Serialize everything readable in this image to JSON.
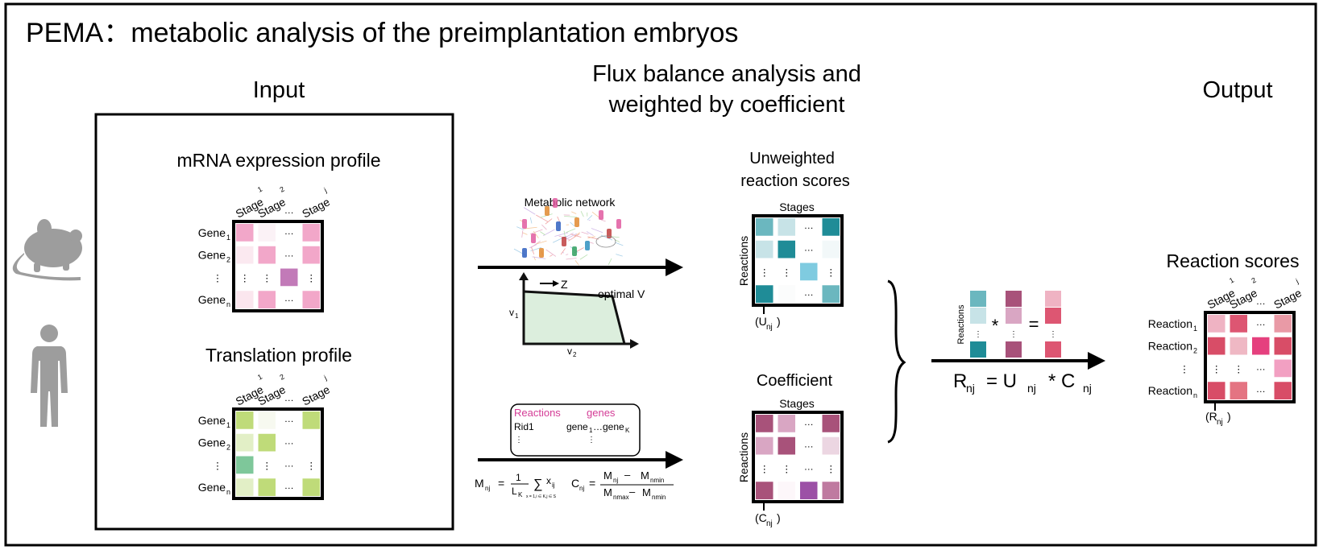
{
  "title": "PEMA：metabolic analysis of the preimplantation embryos",
  "input": {
    "heading": "Input",
    "mrna": {
      "title": "mRNA expression profile",
      "stage_labels": [
        "Stage",
        "Stage",
        "Stage"
      ],
      "stage_subscripts": [
        "1",
        "2",
        "j"
      ],
      "gene_labels": [
        "Gene",
        "Gene",
        "Gene"
      ],
      "gene_subscripts": [
        "1",
        "2",
        "n"
      ],
      "colors": [
        [
          "#f2a7c9",
          "#fbf2f6",
          null,
          "#f2a7c9"
        ],
        [
          "#fbe9f0",
          "#f2a7c9",
          null,
          "#f2a7c9"
        ],
        [
          null,
          null,
          "#c27ab8",
          null
        ],
        [
          "#fbe6ee",
          "#f2a7c9",
          null,
          "#f2a7c9"
        ]
      ]
    },
    "translation": {
      "title": "Translation profile",
      "stage_labels": [
        "Stage",
        "Stage",
        "Stage"
      ],
      "stage_subscripts": [
        "1",
        "2",
        "j"
      ],
      "gene_labels": [
        "Gene",
        "Gene",
        "Gene"
      ],
      "gene_subscripts": [
        "1",
        "2",
        "n"
      ],
      "colors": [
        [
          "#bfdb79",
          "#f7f9f0",
          null,
          "#bfdb79"
        ],
        [
          "#e2efc6",
          "#bfdb79",
          null,
          null
        ],
        [
          "#7ec79a",
          null,
          null,
          null
        ],
        [
          "#e2efc6",
          "#bfdb79",
          null,
          "#bfdb79"
        ]
      ]
    }
  },
  "fba": {
    "heading_line1": "Flux balance analysis and",
    "heading_line2": "weighted by coefficient",
    "network_label": "Metabolic network",
    "z_label": "Z",
    "optimal_label": "optimal V",
    "v1_label": "v",
    "v1_sub": "1",
    "v2_label": "v",
    "v2_sub": "2",
    "reactions_label": "Reactions",
    "genes_label": "genes",
    "rid_label": "Rid1",
    "gene1_label": "gene",
    "gene1_sub": "1",
    "geneK_label": "gene",
    "geneK_sub": "K"
  },
  "unweighted": {
    "title_line1": "Unweighted",
    "title_line2": "reaction scores",
    "stages_label": "Stages",
    "reactions_label": "Reactions",
    "bottom_label": "(U",
    "bottom_sub": "nj",
    "colors": [
      [
        "#6bb7bf",
        "#c7e3e7",
        null,
        "#1f8c97"
      ],
      [
        "#c7e3e7",
        "#1f8c97",
        null,
        "#f2f8f9"
      ],
      [
        null,
        null,
        "#7fcbe0",
        null
      ],
      [
        "#1f8c97",
        "#fbfcfc",
        null,
        "#6bb7bf"
      ]
    ]
  },
  "coefficient": {
    "title": "Coefficient",
    "stages_label": "Stages",
    "reactions_label": "Reactions",
    "bottom_label": "(C",
    "bottom_sub": "nj",
    "colors": [
      [
        "#a8527a",
        "#d9a6c3",
        null,
        "#a8527a"
      ],
      [
        "#d9a6c3",
        "#a8527a",
        null,
        "#ecd6e2"
      ],
      [
        null,
        null,
        null,
        null
      ],
      [
        "#a8527a",
        "#fdf7fa",
        "#9c50a6",
        "#bf7aa0"
      ]
    ]
  },
  "formula": {
    "M": "M",
    "nj": "nj",
    "eq": "=",
    "one": "1",
    "L": "L",
    "K": "K",
    "sigma": "∑",
    "x": "x",
    "ij": "ij",
    "limits": "x = 1,i ∈ K,j ∈ S",
    "C": "C",
    "minus": "–",
    "nmin": "nmin",
    "nmax": "nmax"
  },
  "combine": {
    "reactions_label": "Reactions",
    "multiply": "*",
    "equals": "=",
    "formula_R": "R",
    "formula_nj": "nj",
    "formula_eqU": "= U",
    "formula_star": "* C",
    "col_a": [
      "#6bb7bf",
      "#c7e3e7",
      null,
      "#1f8c97"
    ],
    "col_b": [
      "#a8527a",
      "#d9a6c3",
      null,
      "#a8527a"
    ],
    "col_c": [
      "#efb3c3",
      "#dd5672",
      null,
      "#dd5672"
    ]
  },
  "output": {
    "heading": "Output",
    "title": "Reaction scores",
    "stage_labels": [
      "Stage",
      "Stage",
      "Stage"
    ],
    "stage_subscripts": [
      "1",
      "2",
      "j"
    ],
    "reaction_labels": [
      "Reaction",
      "Reaction",
      "Reaction"
    ],
    "reaction_subscripts": [
      "1",
      "2",
      "n"
    ],
    "bottom_label": "(R",
    "bottom_sub": "nj",
    "colors": [
      [
        "#efb3c3",
        "#dd5672",
        null,
        "#e99aa6"
      ],
      [
        "#d84d67",
        "#efb8c4",
        "#e5407e",
        "#d84d67"
      ],
      [
        null,
        null,
        null,
        "#f2a0c2"
      ],
      [
        "#d84d67",
        "#e47482",
        null,
        "#d84d67"
      ]
    ]
  }
}
